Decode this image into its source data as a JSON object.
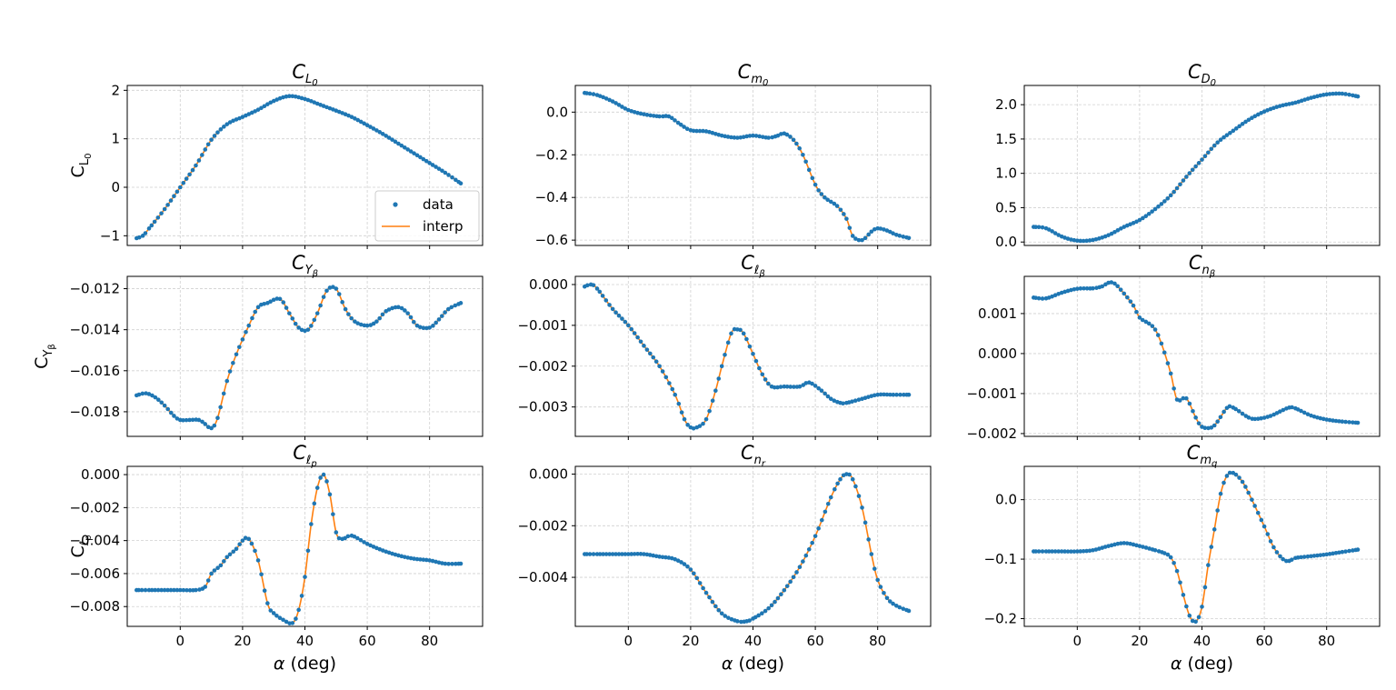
{
  "figure": {
    "background": "#ffffff"
  },
  "colors": {
    "data": "#1f77b4",
    "interp": "#ff7f0e"
  },
  "legend": {
    "data_label": "data",
    "interp_label": "interp",
    "location": "lower-right",
    "panel_index": 0
  },
  "xlabel_prefix": "α",
  "xlabel_suffix": " (deg)",
  "chart_data": [
    {
      "type": "line",
      "title": {
        "base": "C",
        "sub": "L",
        "subsub": "0"
      },
      "ylabel": {
        "base": "C",
        "sub": "L",
        "subsub": "0"
      },
      "xlim": [
        -17,
        97
      ],
      "ylim": [
        -1.2,
        2.1
      ],
      "xticks": [
        0,
        20,
        40,
        60,
        80
      ],
      "show_xticklabels": false,
      "yticks": [
        -1,
        0,
        1,
        2
      ],
      "ytick_labels": [
        "−1",
        "0",
        "1",
        "2"
      ],
      "series": [
        {
          "name": "data",
          "kind": "markers"
        },
        {
          "name": "interp",
          "kind": "line"
        }
      ],
      "x": [
        -14,
        -12,
        -10,
        -5,
        0,
        5,
        10,
        15,
        20,
        25,
        30,
        35,
        40,
        45,
        50,
        55,
        60,
        65,
        70,
        75,
        80,
        85,
        90
      ],
      "y": [
        -1.05,
        -1.0,
        -0.85,
        -0.45,
        0.0,
        0.45,
        0.98,
        1.3,
        1.45,
        1.6,
        1.78,
        1.88,
        1.82,
        1.7,
        1.58,
        1.45,
        1.28,
        1.1,
        0.9,
        0.7,
        0.5,
        0.3,
        0.08
      ]
    },
    {
      "type": "line",
      "title": {
        "base": "C",
        "sub": "m",
        "subsub": "0"
      },
      "ylabel": null,
      "xlim": [
        -17,
        97
      ],
      "ylim": [
        -0.625,
        0.125
      ],
      "xticks": [
        0,
        20,
        40,
        60,
        80
      ],
      "show_xticklabels": false,
      "yticks": [
        0.0,
        -0.2,
        -0.4,
        -0.6
      ],
      "ytick_labels": [
        "0.0",
        "−0.2",
        "−0.4",
        "−0.6"
      ],
      "series": [
        {
          "name": "data",
          "kind": "markers"
        },
        {
          "name": "interp",
          "kind": "line"
        }
      ],
      "x": [
        -14,
        -10,
        -5,
        0,
        5,
        10,
        13,
        16,
        20,
        25,
        30,
        35,
        40,
        45,
        48,
        50,
        53,
        56,
        60,
        63,
        67,
        70,
        72,
        75,
        78,
        80,
        83,
        86,
        90
      ],
      "y": [
        0.09,
        0.08,
        0.05,
        0.01,
        -0.01,
        -0.02,
        -0.02,
        -0.05,
        -0.085,
        -0.09,
        -0.11,
        -0.12,
        -0.11,
        -0.12,
        -0.11,
        -0.1,
        -0.13,
        -0.2,
        -0.34,
        -0.4,
        -0.44,
        -0.5,
        -0.58,
        -0.6,
        -0.56,
        -0.545,
        -0.555,
        -0.575,
        -0.59
      ]
    },
    {
      "type": "line",
      "title": {
        "base": "C",
        "sub": "D",
        "subsub": "0"
      },
      "ylabel": null,
      "xlim": [
        -17,
        97
      ],
      "ylim": [
        -0.05,
        2.28
      ],
      "xticks": [
        0,
        20,
        40,
        60,
        80
      ],
      "show_xticklabels": false,
      "yticks": [
        0.0,
        0.5,
        1.0,
        1.5,
        2.0
      ],
      "ytick_labels": [
        "0.0",
        "0.5",
        "1.0",
        "1.5",
        "2.0"
      ],
      "series": [
        {
          "name": "data",
          "kind": "markers"
        },
        {
          "name": "interp",
          "kind": "line"
        }
      ],
      "x": [
        -14,
        -10,
        -5,
        0,
        5,
        10,
        15,
        20,
        25,
        30,
        35,
        40,
        45,
        50,
        55,
        60,
        65,
        70,
        75,
        80,
        85,
        90
      ],
      "y": [
        0.22,
        0.2,
        0.08,
        0.02,
        0.03,
        0.1,
        0.22,
        0.32,
        0.48,
        0.68,
        0.95,
        1.2,
        1.45,
        1.62,
        1.78,
        1.9,
        1.98,
        2.03,
        2.1,
        2.15,
        2.16,
        2.12
      ]
    },
    {
      "type": "line",
      "title": {
        "base": "C",
        "sub": "Y",
        "subsub": "β"
      },
      "ylabel": {
        "base": "C",
        "sub": "Y",
        "subsub": "β"
      },
      "xlim": [
        -17,
        97
      ],
      "ylim": [
        -0.0192,
        -0.0114
      ],
      "xticks": [
        0,
        20,
        40,
        60,
        80
      ],
      "show_xticklabels": false,
      "yticks": [
        -0.012,
        -0.014,
        -0.016,
        -0.018
      ],
      "ytick_labels": [
        "−0.012",
        "−0.014",
        "−0.016",
        "−0.018"
      ],
      "series": [
        {
          "name": "data",
          "kind": "markers"
        },
        {
          "name": "interp",
          "kind": "line"
        }
      ],
      "x": [
        -14,
        -11,
        -8,
        -5,
        -2,
        0,
        3,
        6,
        8,
        10,
        12,
        15,
        18,
        22,
        25,
        28,
        32,
        35,
        38,
        41,
        44,
        47,
        50,
        53,
        56,
        60,
        63,
        66,
        70,
        73,
        76,
        80,
        83,
        86,
        90
      ],
      "y": [
        -0.0172,
        -0.0171,
        -0.0173,
        -0.0177,
        -0.0182,
        -0.0184,
        -0.0184,
        -0.0184,
        -0.0186,
        -0.0188,
        -0.0183,
        -0.0165,
        -0.0152,
        -0.0138,
        -0.0129,
        -0.0127,
        -0.0125,
        -0.0132,
        -0.0139,
        -0.014,
        -0.0132,
        -0.0121,
        -0.012,
        -0.013,
        -0.0136,
        -0.0138,
        -0.0136,
        -0.0131,
        -0.0129,
        -0.0132,
        -0.0138,
        -0.0139,
        -0.0135,
        -0.013,
        -0.0127
      ]
    },
    {
      "type": "line",
      "title": {
        "base": "C",
        "sub": "ℓ",
        "subsub": "β"
      },
      "ylabel": null,
      "xlim": [
        -17,
        97
      ],
      "ylim": [
        -0.00372,
        0.0002
      ],
      "xticks": [
        0,
        20,
        40,
        60,
        80
      ],
      "show_xticklabels": false,
      "yticks": [
        0.0,
        -0.001,
        -0.002,
        -0.003
      ],
      "ytick_labels": [
        "0.000",
        "−0.001",
        "−0.002",
        "−0.003"
      ],
      "series": [
        {
          "name": "data",
          "kind": "markers"
        },
        {
          "name": "interp",
          "kind": "line"
        }
      ],
      "x": [
        -14,
        -12,
        -10,
        -5,
        0,
        5,
        10,
        15,
        18,
        20,
        22,
        25,
        28,
        30,
        33,
        35,
        37,
        40,
        43,
        46,
        50,
        55,
        58,
        62,
        65,
        68,
        70,
        75,
        80,
        85,
        90
      ],
      "y": [
        -5e-05,
        0.0,
        -0.0001,
        -0.0006,
        -0.001,
        -0.0015,
        -0.002,
        -0.0027,
        -0.0033,
        -0.0035,
        -0.0035,
        -0.0033,
        -0.0026,
        -0.002,
        -0.0012,
        -0.0011,
        -0.0012,
        -0.0017,
        -0.0022,
        -0.0025,
        -0.0025,
        -0.0025,
        -0.0024,
        -0.0026,
        -0.0028,
        -0.0029,
        -0.0029,
        -0.0028,
        -0.0027,
        -0.0027,
        -0.0027
      ]
    },
    {
      "type": "line",
      "title": {
        "base": "C",
        "sub": "n",
        "subsub": "β"
      },
      "ylabel": null,
      "xlim": [
        -17,
        97
      ],
      "ylim": [
        -0.00207,
        0.00193
      ],
      "xticks": [
        0,
        20,
        40,
        60,
        80
      ],
      "show_xticklabels": false,
      "yticks": [
        0.001,
        0.0,
        -0.001,
        -0.002
      ],
      "ytick_labels": [
        "0.001",
        "0.000",
        "−0.001",
        "−0.002"
      ],
      "series": [
        {
          "name": "data",
          "kind": "markers"
        },
        {
          "name": "interp",
          "kind": "line"
        }
      ],
      "x": [
        -14,
        -10,
        -5,
        0,
        5,
        8,
        10,
        12,
        15,
        18,
        20,
        23,
        25,
        27,
        30,
        32,
        35,
        38,
        40,
        43,
        45,
        48,
        50,
        55,
        58,
        62,
        65,
        68,
        70,
        75,
        80,
        85,
        90
      ],
      "y": [
        0.0014,
        0.00138,
        0.00152,
        0.00162,
        0.00163,
        0.00168,
        0.00177,
        0.00175,
        0.0015,
        0.0012,
        0.0009,
        0.00075,
        0.0006,
        0.00025,
        -0.0005,
        -0.00115,
        -0.00112,
        -0.0016,
        -0.00183,
        -0.00185,
        -0.0017,
        -0.00136,
        -0.00135,
        -0.0016,
        -0.00163,
        -0.00156,
        -0.00145,
        -0.00135,
        -0.00137,
        -0.00155,
        -0.00165,
        -0.0017,
        -0.00173
      ]
    },
    {
      "type": "line",
      "title": {
        "base": "C",
        "sub": "ℓ",
        "subsub": "p"
      },
      "ylabel": {
        "base": "C",
        "sub": "ℓ",
        "subsub": "p"
      },
      "xlim": [
        -17,
        97
      ],
      "ylim": [
        -0.0092,
        0.0005
      ],
      "xticks": [
        0,
        20,
        40,
        60,
        80
      ],
      "show_xticklabels": true,
      "yticks": [
        0.0,
        -0.002,
        -0.004,
        -0.006,
        -0.008
      ],
      "ytick_labels": [
        "0.000",
        "−0.002",
        "−0.004",
        "−0.006",
        "−0.008"
      ],
      "series": [
        {
          "name": "data",
          "kind": "markers"
        },
        {
          "name": "interp",
          "kind": "line"
        }
      ],
      "x": [
        -14,
        -10,
        -5,
        0,
        5,
        8,
        10,
        13,
        15,
        18,
        20,
        22,
        25,
        28,
        30,
        33,
        36,
        38,
        40,
        42,
        44,
        46,
        48,
        50,
        52,
        55,
        60,
        65,
        70,
        75,
        80,
        85,
        90
      ],
      "y": [
        -0.007,
        -0.007,
        -0.007,
        -0.007,
        -0.007,
        -0.0068,
        -0.006,
        -0.0055,
        -0.005,
        -0.0045,
        -0.004,
        -0.0039,
        -0.0052,
        -0.0078,
        -0.0084,
        -0.0088,
        -0.009,
        -0.0082,
        -0.0062,
        -0.003,
        -0.0008,
        0.0,
        -0.0012,
        -0.0035,
        -0.0039,
        -0.0037,
        -0.0042,
        -0.0046,
        -0.0049,
        -0.0051,
        -0.0052,
        -0.0054,
        -0.0054
      ]
    },
    {
      "type": "line",
      "title": {
        "base": "C",
        "sub": "n",
        "subsub": "r"
      },
      "ylabel": null,
      "xlim": [
        -17,
        97
      ],
      "ylim": [
        -0.0059,
        0.0003
      ],
      "xticks": [
        0,
        20,
        40,
        60,
        80
      ],
      "show_xticklabels": true,
      "yticks": [
        0.0,
        -0.002,
        -0.004
      ],
      "ytick_labels": [
        "0.000",
        "−0.002",
        "−0.004"
      ],
      "series": [
        {
          "name": "data",
          "kind": "markers"
        },
        {
          "name": "interp",
          "kind": "line"
        }
      ],
      "x": [
        -14,
        -10,
        -5,
        0,
        5,
        10,
        15,
        20,
        25,
        30,
        35,
        38,
        40,
        45,
        50,
        55,
        60,
        65,
        68,
        70,
        72,
        75,
        78,
        80,
        83,
        86,
        90
      ],
      "y": [
        -0.0031,
        -0.0031,
        -0.0031,
        -0.0031,
        -0.0031,
        -0.0032,
        -0.0033,
        -0.0037,
        -0.0046,
        -0.0054,
        -0.0057,
        -0.0057,
        -0.0056,
        -0.0052,
        -0.0045,
        -0.0036,
        -0.0024,
        -0.0009,
        -0.0002,
        0.0,
        -0.0002,
        -0.0013,
        -0.0031,
        -0.0041,
        -0.0048,
        -0.0051,
        -0.0053
      ]
    },
    {
      "type": "line",
      "title": {
        "base": "C",
        "sub": "m",
        "subsub": "q"
      },
      "ylabel": null,
      "xlim": [
        -17,
        97
      ],
      "ylim": [
        -0.213,
        0.056
      ],
      "xticks": [
        0,
        20,
        40,
        60,
        80
      ],
      "show_xticklabels": true,
      "yticks": [
        0.0,
        -0.1,
        -0.2
      ],
      "ytick_labels": [
        "0.0",
        "−0.1",
        "−0.2"
      ],
      "series": [
        {
          "name": "data",
          "kind": "markers"
        },
        {
          "name": "interp",
          "kind": "line"
        }
      ],
      "x": [
        -14,
        -10,
        -5,
        0,
        5,
        10,
        15,
        20,
        25,
        28,
        30,
        32,
        34,
        36,
        38,
        40,
        42,
        44,
        46,
        48,
        50,
        53,
        56,
        60,
        63,
        66,
        68,
        70,
        75,
        80,
        85,
        90
      ],
      "y": [
        -0.087,
        -0.087,
        -0.087,
        -0.087,
        -0.085,
        -0.078,
        -0.073,
        -0.078,
        -0.085,
        -0.09,
        -0.097,
        -0.12,
        -0.16,
        -0.195,
        -0.205,
        -0.18,
        -0.11,
        -0.05,
        0.01,
        0.04,
        0.045,
        0.03,
        0.0,
        -0.045,
        -0.08,
        -0.1,
        -0.103,
        -0.098,
        -0.095,
        -0.092,
        -0.088,
        -0.084
      ]
    }
  ]
}
